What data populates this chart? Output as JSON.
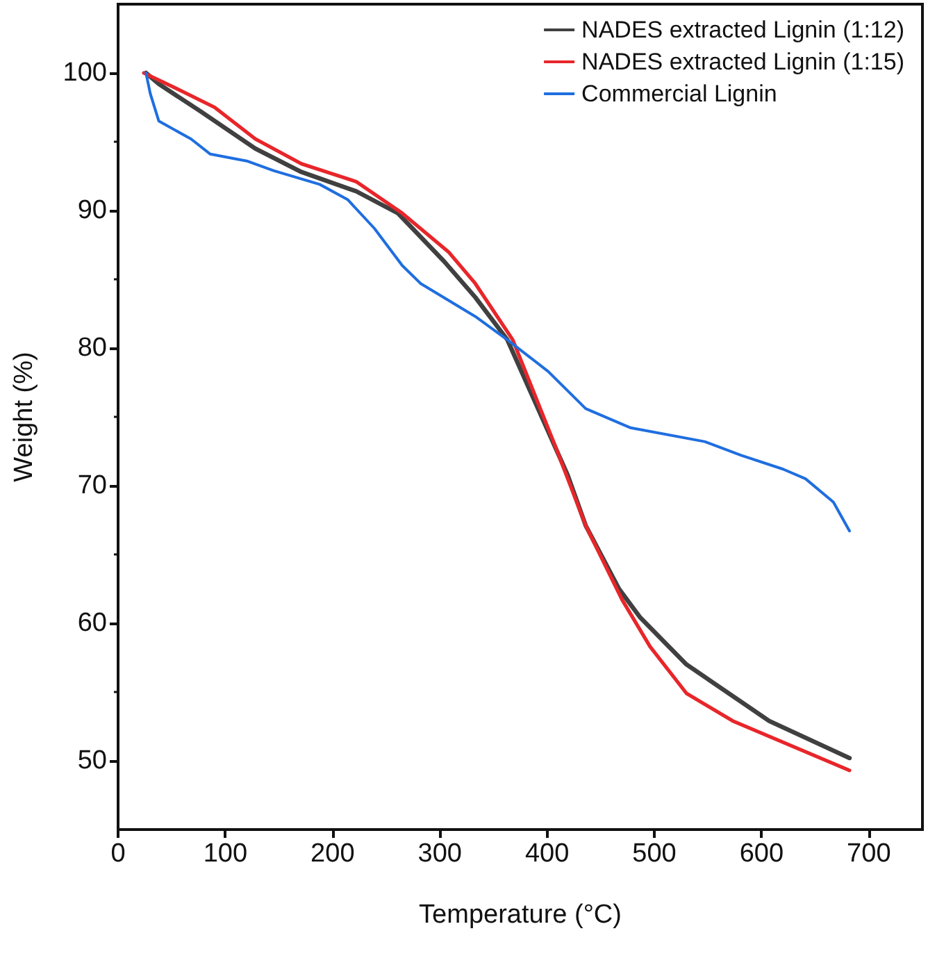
{
  "chart_data": {
    "type": "line",
    "xlabel": "Temperature (°C)",
    "ylabel": "Weight (%)",
    "xlim": [
      0,
      750
    ],
    "xticks": [
      0,
      100,
      200,
      300,
      400,
      500,
      600,
      700
    ],
    "ylim": [
      45,
      105
    ],
    "yticks": [
      50,
      60,
      70,
      80,
      90,
      100
    ],
    "grid": false,
    "legend": "top right",
    "marker": "none",
    "line_style": "solid",
    "series": [
      {
        "name": "NADES extracted Lignin (1:12)",
        "color": "#404040",
        "x": [
          26,
          38,
          77,
          128,
          171,
          222,
          261,
          304,
          333,
          363,
          419,
          436,
          467,
          487,
          530,
          607,
          682
        ],
        "values": [
          100,
          99.2,
          97.2,
          94.5,
          92.8,
          91.4,
          89.8,
          86.3,
          83.7,
          80.6,
          70.8,
          67.1,
          62.5,
          60.4,
          57,
          52.9,
          50.2
        ]
      },
      {
        "name": "NADES extracted Lignin (1:15)",
        "color": "#e8262a",
        "x": [
          24,
          51,
          90,
          128,
          171,
          222,
          265,
          308,
          333,
          368,
          407,
          436,
          470,
          496,
          530,
          573,
          682
        ],
        "values": [
          100,
          99,
          97.5,
          95.2,
          93.4,
          92.1,
          89.8,
          87,
          84.7,
          80.6,
          73,
          67.1,
          61.7,
          58.3,
          54.9,
          52.9,
          49.3
        ]
      },
      {
        "name": "Commercial Lignin",
        "color": "#1f6ee0",
        "x": [
          26,
          30,
          38,
          68,
          86,
          120,
          145,
          188,
          214,
          239,
          265,
          282,
          333,
          363,
          401,
          436,
          478,
          547,
          581,
          620,
          641,
          667,
          682
        ],
        "values": [
          100,
          98.5,
          96.5,
          95.2,
          94.1,
          93.6,
          92.9,
          91.9,
          90.8,
          88.7,
          86,
          84.7,
          82.3,
          80.6,
          78.3,
          75.6,
          74.2,
          73.2,
          72.2,
          71.2,
          70.5,
          68.8,
          66.7
        ]
      }
    ]
  }
}
